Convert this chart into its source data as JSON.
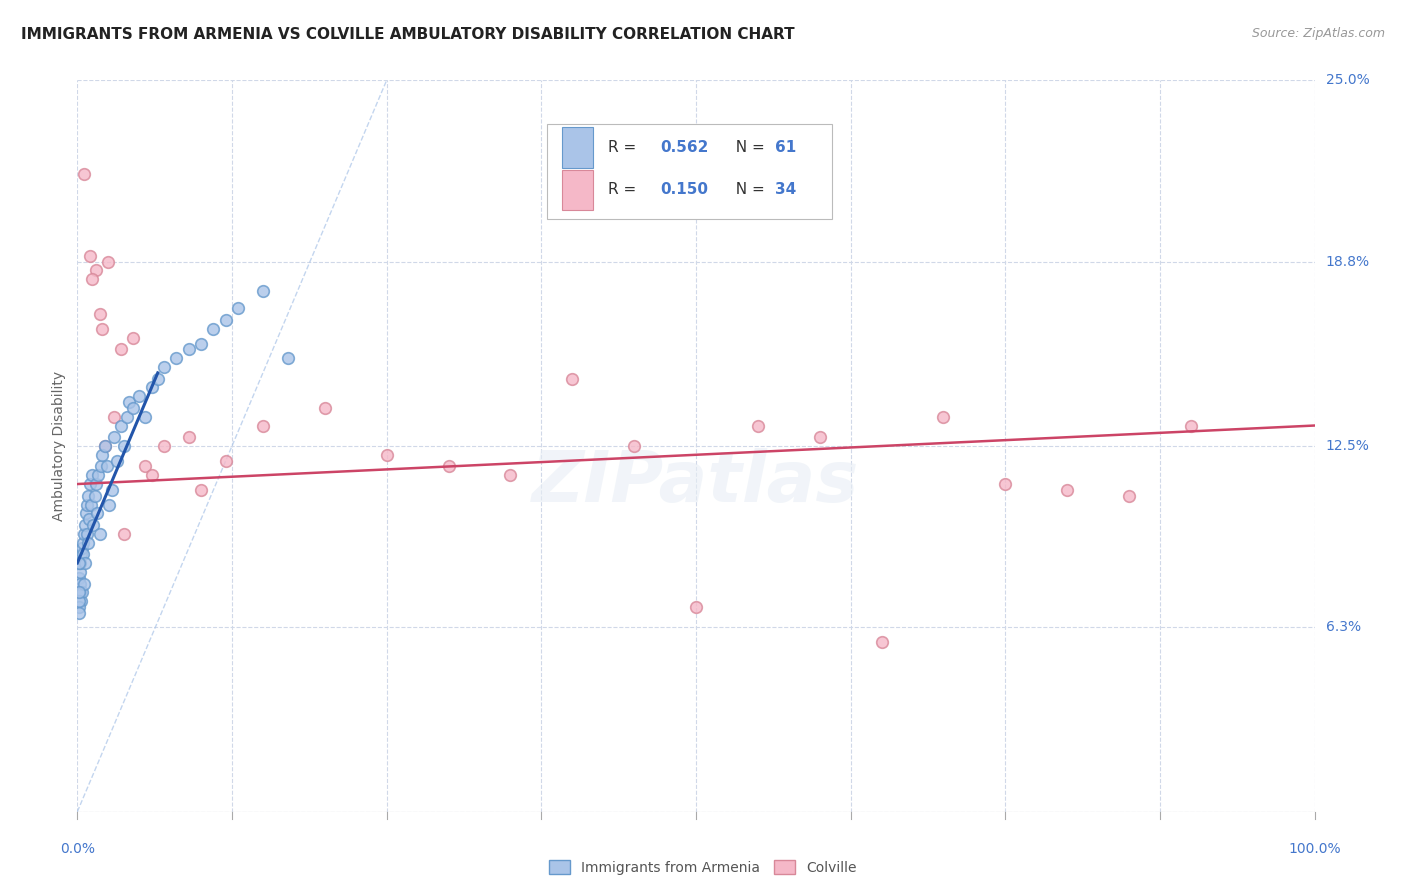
{
  "title": "IMMIGRANTS FROM ARMENIA VS COLVILLE AMBULATORY DISABILITY CORRELATION CHART",
  "source": "Source: ZipAtlas.com",
  "ylabel": "Ambulatory Disability",
  "xlim": [
    0,
    100
  ],
  "ylim": [
    0,
    25
  ],
  "legend_label1": "Immigrants from Armenia",
  "legend_label2": "Colville",
  "blue_color": "#aac4e8",
  "blue_edge": "#6699cc",
  "blue_line_color": "#2255aa",
  "pink_color": "#f5b8c8",
  "pink_edge": "#d88899",
  "pink_line_color": "#cc4466",
  "diag_color": "#aac4e8",
  "grid_color": "#d0d8e8",
  "axis_color": "#4477cc",
  "title_color": "#222222",
  "source_color": "#999999",
  "ylabel_color": "#666666",
  "bg_color": "#ffffff",
  "blue_scatter_x": [
    0.15,
    0.18,
    0.2,
    0.22,
    0.25,
    0.28,
    0.3,
    0.35,
    0.4,
    0.42,
    0.45,
    0.5,
    0.55,
    0.6,
    0.65,
    0.7,
    0.75,
    0.8,
    0.85,
    0.9,
    0.95,
    1.0,
    1.1,
    1.2,
    1.3,
    1.4,
    1.5,
    1.6,
    1.7,
    1.8,
    1.9,
    2.0,
    2.2,
    2.4,
    2.6,
    2.8,
    3.0,
    3.2,
    3.5,
    3.8,
    4.0,
    4.2,
    4.5,
    5.0,
    5.5,
    6.0,
    6.5,
    7.0,
    8.0,
    9.0,
    10.0,
    11.0,
    12.0,
    13.0,
    15.0,
    17.0,
    0.12,
    0.13,
    0.14,
    0.16,
    0.17
  ],
  "blue_scatter_y": [
    8.0,
    7.5,
    7.8,
    8.2,
    8.5,
    7.2,
    8.8,
    9.0,
    7.5,
    9.2,
    8.8,
    9.5,
    7.8,
    9.8,
    8.5,
    10.2,
    9.5,
    10.5,
    9.2,
    10.8,
    10.0,
    11.2,
    10.5,
    11.5,
    9.8,
    10.8,
    11.2,
    10.2,
    11.5,
    9.5,
    11.8,
    12.2,
    12.5,
    11.8,
    10.5,
    11.0,
    12.8,
    12.0,
    13.2,
    12.5,
    13.5,
    14.0,
    13.8,
    14.2,
    13.5,
    14.5,
    14.8,
    15.2,
    15.5,
    15.8,
    16.0,
    16.5,
    16.8,
    17.2,
    17.8,
    15.5,
    7.0,
    7.2,
    6.8,
    7.5,
    8.5
  ],
  "pink_scatter_x": [
    0.5,
    1.0,
    1.5,
    1.8,
    2.0,
    2.5,
    3.0,
    3.5,
    4.5,
    5.5,
    7.0,
    9.0,
    12.0,
    15.0,
    20.0,
    25.0,
    30.0,
    35.0,
    40.0,
    45.0,
    50.0,
    55.0,
    65.0,
    70.0,
    75.0,
    80.0,
    85.0,
    90.0,
    1.2,
    2.2,
    6.0,
    10.0,
    3.8,
    60.0
  ],
  "pink_scatter_y": [
    21.8,
    19.0,
    18.5,
    17.0,
    16.5,
    18.8,
    13.5,
    15.8,
    16.2,
    11.8,
    12.5,
    12.8,
    12.0,
    13.2,
    13.8,
    12.2,
    11.8,
    11.5,
    14.8,
    12.5,
    7.0,
    13.2,
    5.8,
    13.5,
    11.2,
    11.0,
    10.8,
    13.2,
    18.2,
    12.5,
    11.5,
    11.0,
    9.5,
    12.8
  ],
  "blue_line_x": [
    0.0,
    6.5
  ],
  "blue_line_y": [
    8.5,
    15.0
  ],
  "pink_line_x": [
    0.0,
    100.0
  ],
  "pink_line_y": [
    11.2,
    13.2
  ],
  "diag_line_x": [
    0.0,
    25.0
  ],
  "diag_line_y": [
    0.0,
    25.0
  ],
  "ytick_vals": [
    6.3,
    12.5,
    18.8,
    25.0
  ],
  "ytick_labels": [
    "6.3%",
    "12.5%",
    "18.8%",
    "25.0%"
  ],
  "title_fontsize": 11,
  "source_fontsize": 9,
  "label_fontsize": 10,
  "tick_fontsize": 10,
  "marker_size": 70
}
